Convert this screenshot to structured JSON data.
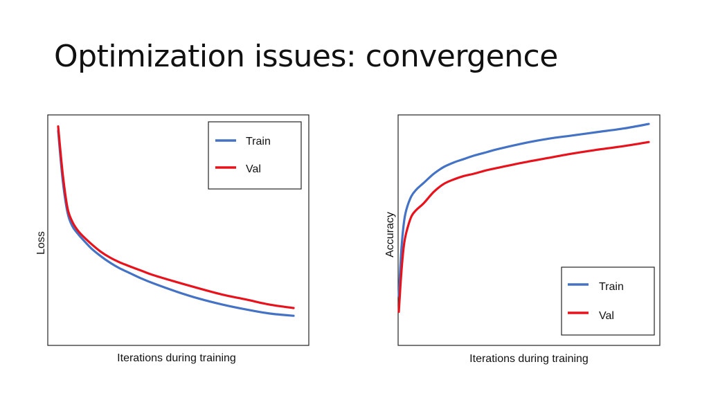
{
  "slide": {
    "title": "Optimization issues: convergence"
  },
  "colors": {
    "train": "#4472C4",
    "val": "#E8121C"
  },
  "chart_data": [
    {
      "type": "line",
      "title": "",
      "xlabel": "Iterations during training",
      "ylabel": "Loss",
      "xlim": [
        0,
        100
      ],
      "ylim": [
        0,
        100
      ],
      "legend_position": "top-right",
      "grid": false,
      "ticks": false,
      "series": [
        {
          "name": "Train",
          "color": "#4472C4",
          "x": [
            0,
            2,
            4,
            6,
            8,
            10,
            14,
            18,
            22,
            26,
            30,
            35,
            40,
            50,
            60,
            70,
            80,
            90,
            100
          ],
          "y": [
            95,
            72,
            58,
            52,
            49,
            46.5,
            42,
            38.5,
            35.5,
            33,
            31,
            28.5,
            26.3,
            22.5,
            19.2,
            16.5,
            14.3,
            12.5,
            11.5
          ]
        },
        {
          "name": "Val",
          "color": "#E8121C",
          "x": [
            0,
            2,
            4,
            6,
            8,
            10,
            14,
            18,
            22,
            26,
            30,
            35,
            40,
            50,
            60,
            70,
            80,
            90,
            100
          ],
          "y": [
            97,
            75,
            60,
            54,
            50.5,
            48,
            44,
            40.5,
            37.8,
            35.7,
            34,
            32,
            30,
            26.8,
            23.8,
            21,
            18.8,
            16.5,
            15
          ]
        }
      ]
    },
    {
      "type": "line",
      "title": "",
      "xlabel": "Iterations during training",
      "ylabel": "Accuracy",
      "xlim": [
        0,
        100
      ],
      "ylim": [
        0,
        100
      ],
      "legend_position": "bottom-right",
      "grid": false,
      "ticks": false,
      "series": [
        {
          "name": "Train",
          "color": "#4472C4",
          "x": [
            0,
            1,
            2,
            3,
            5,
            7,
            10,
            14,
            18,
            22,
            26,
            30,
            35,
            40,
            50,
            60,
            70,
            80,
            90,
            100
          ],
          "y": [
            20,
            40,
            52,
            58,
            64,
            67,
            70,
            74,
            77,
            79,
            80.5,
            82,
            83.5,
            85,
            87.5,
            89.5,
            91,
            92.5,
            94,
            96
          ]
        },
        {
          "name": "Val",
          "color": "#E8121C",
          "x": [
            0,
            1,
            2,
            3,
            5,
            7,
            10,
            14,
            18,
            22,
            26,
            30,
            35,
            40,
            50,
            60,
            70,
            80,
            90,
            100
          ],
          "y": [
            13,
            30,
            42,
            48,
            55,
            58,
            61,
            66,
            69.5,
            71.5,
            73,
            74,
            75.5,
            76.7,
            79,
            81,
            83,
            84.7,
            86.2,
            88
          ]
        }
      ]
    }
  ]
}
